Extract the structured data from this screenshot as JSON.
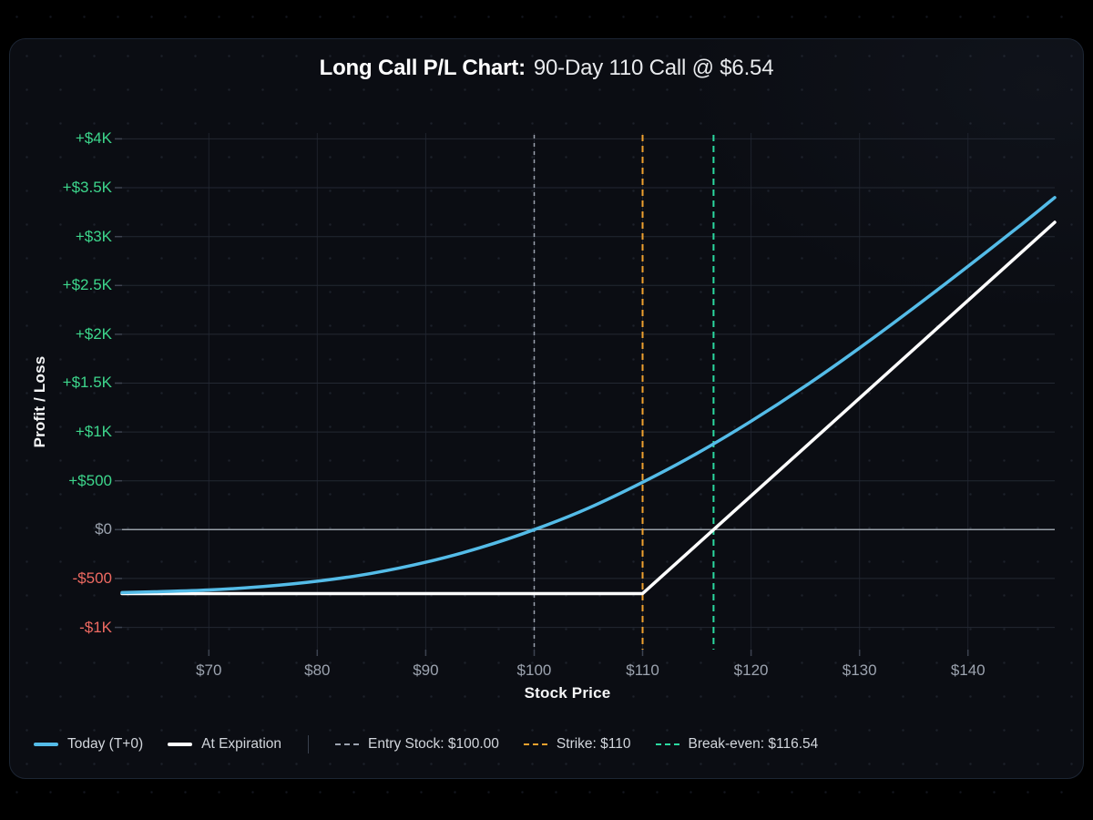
{
  "title": {
    "bold": "Long Call P/L Chart:",
    "rest": "90-Day 110 Call @ $6.54"
  },
  "axes": {
    "y_title": "Profit / Loss",
    "x_title": "Stock Price",
    "y_ticks": [
      {
        "label": "+$4K",
        "value": 4000,
        "color": "#3dd68c"
      },
      {
        "label": "+$3.5K",
        "value": 3500,
        "color": "#3dd68c"
      },
      {
        "label": "+$3K",
        "value": 3000,
        "color": "#3dd68c"
      },
      {
        "label": "+$2.5K",
        "value": 2500,
        "color": "#3dd68c"
      },
      {
        "label": "+$2K",
        "value": 2000,
        "color": "#3dd68c"
      },
      {
        "label": "+$1.5K",
        "value": 1500,
        "color": "#3dd68c"
      },
      {
        "label": "+$1K",
        "value": 1000,
        "color": "#3dd68c"
      },
      {
        "label": "+$500",
        "value": 500,
        "color": "#3dd68c"
      },
      {
        "label": "$0",
        "value": 0,
        "color": "#9ca3af"
      },
      {
        "label": "-$500",
        "value": -500,
        "color": "#ef6a62"
      },
      {
        "label": "-$1K",
        "value": -1000,
        "color": "#ef6a62"
      }
    ],
    "x_ticks": [
      {
        "label": "$70",
        "value": 70
      },
      {
        "label": "$80",
        "value": 80
      },
      {
        "label": "$90",
        "value": 90
      },
      {
        "label": "$100",
        "value": 100
      },
      {
        "label": "$110",
        "value": 110
      },
      {
        "label": "$120",
        "value": 120
      },
      {
        "label": "$130",
        "value": 130
      },
      {
        "label": "$140",
        "value": 140
      }
    ]
  },
  "chart_data": {
    "type": "line",
    "title": "Long Call P/L Chart: 90-Day 110 Call @ $6.54",
    "xlabel": "Stock Price",
    "ylabel": "Profit / Loss",
    "xlim": [
      62,
      148
    ],
    "ylim": [
      -1228,
      4060
    ],
    "grid": true,
    "legend_position": "bottom-left",
    "series": [
      {
        "id": "today",
        "name": "Today (T+0)",
        "color": "#54bce8",
        "width": 3.5,
        "smooth": true,
        "points": [
          [
            62,
            -644
          ],
          [
            65,
            -636
          ],
          [
            70,
            -617
          ],
          [
            75,
            -583
          ],
          [
            80,
            -528
          ],
          [
            85,
            -447
          ],
          [
            90,
            -334
          ],
          [
            95,
            -185
          ],
          [
            100,
            0
          ],
          [
            105,
            220
          ],
          [
            110,
            485
          ],
          [
            115,
            780
          ],
          [
            120,
            1110
          ],
          [
            125,
            1470
          ],
          [
            130,
            1860
          ],
          [
            135,
            2270
          ],
          [
            140,
            2695
          ],
          [
            145,
            3130
          ],
          [
            148,
            3400
          ]
        ]
      },
      {
        "id": "expiration",
        "name": "At Expiration",
        "color": "#ffffff",
        "width": 3.5,
        "smooth": false,
        "points": [
          [
            62,
            -654
          ],
          [
            110,
            -654
          ],
          [
            148,
            3146
          ]
        ]
      }
    ],
    "vlines": [
      {
        "id": "entry",
        "label": "Entry Stock: $100.00",
        "x": 100,
        "color": "#9ca3af",
        "width": 1.5,
        "dash": "4 5"
      },
      {
        "id": "strike",
        "label": "Strike: $110",
        "x": 110,
        "color": "#efa12f",
        "width": 2,
        "dash": "7 5"
      },
      {
        "id": "breakeven",
        "label": "Break-even: $116.54",
        "x": 116.54,
        "color": "#2bd9a0",
        "width": 2,
        "dash": "7 5"
      }
    ]
  },
  "legend": {
    "items": [
      {
        "id": "today",
        "label": "Today (T+0)",
        "color": "#54bce8",
        "style": "solid"
      },
      {
        "id": "expiration",
        "label": "At Expiration",
        "color": "#ffffff",
        "style": "solid"
      },
      {
        "id": "entry-stock",
        "label": "Entry Stock: $100.00",
        "color": "#9ca3af",
        "style": "dashed",
        "divider_before": true
      },
      {
        "id": "strike",
        "label": "Strike: $110",
        "color": "#efa12f",
        "style": "dashed"
      },
      {
        "id": "breakeven",
        "label": "Break-even: $116.54",
        "color": "#2bd9a0",
        "style": "dashed"
      }
    ]
  },
  "colors": {
    "page_bg": "#000000",
    "panel_bg": "#0b0d13",
    "panel_border": "#1c2533",
    "grid": "#232833",
    "zero_line": "#99a0a8",
    "profit": "#3dd68c",
    "loss": "#ef6a62",
    "neutral": "#9ca3af"
  }
}
